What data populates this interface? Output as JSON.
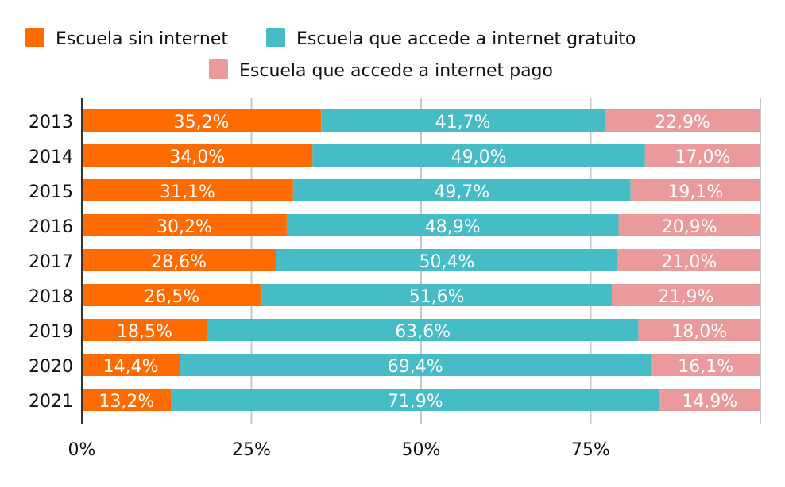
{
  "chart_data": {
    "type": "bar",
    "orientation": "horizontal",
    "stacked": true,
    "categories": [
      "2013",
      "2014",
      "2015",
      "2016",
      "2017",
      "2018",
      "2019",
      "2020",
      "2021"
    ],
    "series": [
      {
        "name": "Escuela sin internet",
        "color": "#FF6B00",
        "values": [
          35.2,
          34.0,
          31.1,
          30.2,
          28.6,
          26.5,
          18.5,
          14.4,
          13.2
        ],
        "labels": [
          "35,2%",
          "34,0%",
          "31,1%",
          "30,2%",
          "28,6%",
          "26,5%",
          "18,5%",
          "14,4%",
          "13,2%"
        ]
      },
      {
        "name": "Escuela que accede a internet gratuito",
        "color": "#45BCC6",
        "values": [
          41.7,
          49.0,
          49.7,
          48.9,
          50.4,
          51.6,
          63.6,
          69.4,
          71.9
        ],
        "labels": [
          "41,7%",
          "49,0%",
          "49,7%",
          "48,9%",
          "50,4%",
          "51,6%",
          "63,6%",
          "69,4%",
          "71,9%"
        ]
      },
      {
        "name": "Escuela que accede a internet pago",
        "color": "#EA9A9A",
        "values": [
          22.9,
          17.0,
          19.1,
          20.9,
          21.0,
          21.9,
          18.0,
          16.1,
          14.9
        ],
        "labels": [
          "22,9%",
          "17,0%",
          "19,1%",
          "20,9%",
          "21,0%",
          "21,9%",
          "18,0%",
          "16,1%",
          "14,9%"
        ]
      }
    ],
    "xlim": [
      0,
      100
    ],
    "xticks": [
      0,
      25,
      50,
      75
    ],
    "xtick_labels": [
      "0%",
      "25%",
      "50%",
      "75%"
    ],
    "grid": true,
    "legend_position": "top"
  }
}
